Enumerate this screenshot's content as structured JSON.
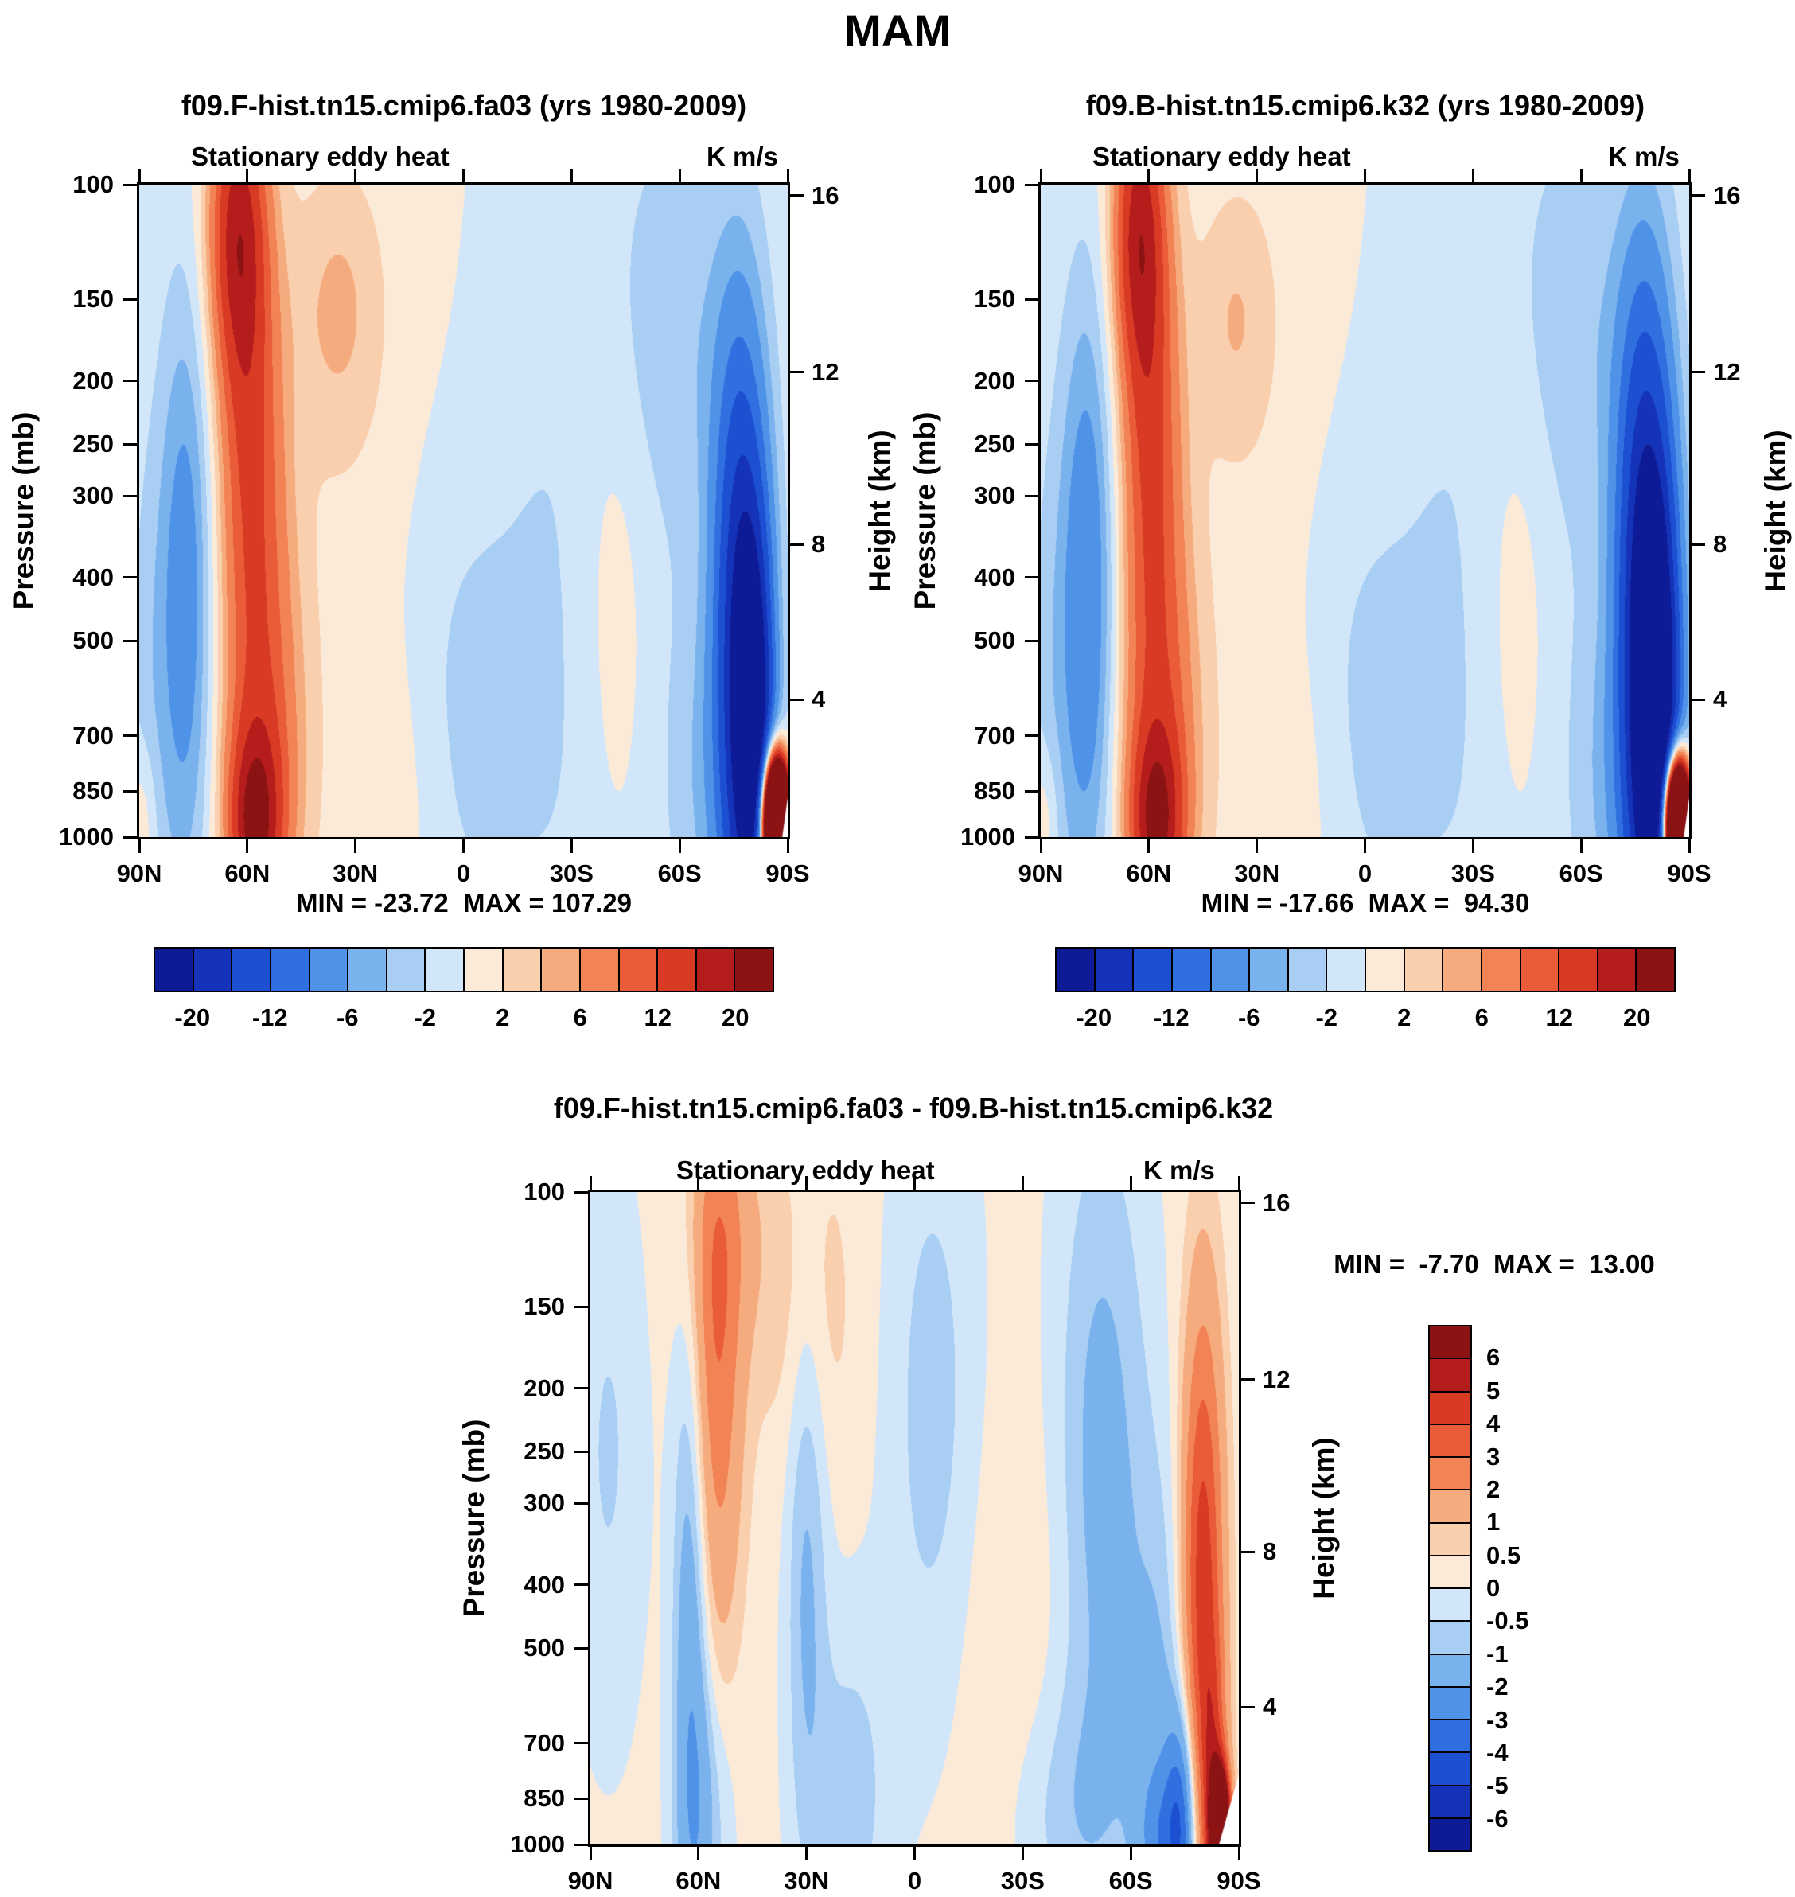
{
  "page_title": "MAM",
  "chart_data": [
    {
      "type": "heatmap",
      "plot": "latitude-pressure filled contour section",
      "title": "f09.F-hist.tn15.cmip6.fa03 (yrs 1980-2009)",
      "subtitle": "Stationary eddy heat",
      "units": "K m/s",
      "ylabel_left": "Pressure (mb)",
      "ylabel_right": "Height (km)",
      "y_scale": "log",
      "pressure_ticks_mb": [
        100,
        150,
        200,
        250,
        300,
        400,
        500,
        700,
        850,
        1000
      ],
      "height_ticks_km": [
        {
          "km": "16",
          "p_mb": 104
        },
        {
          "km": "12",
          "p_mb": 194
        },
        {
          "km": "8",
          "p_mb": 356
        },
        {
          "km": "4",
          "p_mb": 616
        }
      ],
      "x_ticks": [
        "90N",
        "60N",
        "30N",
        "0",
        "30S",
        "60S",
        "90S"
      ],
      "x_range_deg": [
        90,
        -90
      ],
      "min": -23.72,
      "max": 107.29,
      "minmax_label": "MIN = -23.72  MAX = 107.29",
      "contour_levels": [
        -20,
        -16,
        -12,
        -9,
        -6,
        -4,
        -2,
        0,
        2,
        4,
        6,
        9,
        12,
        16,
        20
      ],
      "colorbar_tick_labels": [
        "-20",
        "-12",
        "-6",
        "-2",
        "2",
        "6",
        "12",
        "20"
      ],
      "colors": [
        "#0d1c96",
        "#1433b8",
        "#1d4fd2",
        "#2f6fe0",
        "#4f93e8",
        "#7ab2ee",
        "#a8cef4",
        "#d2e6f9",
        "#fcead9",
        "#f9cfae",
        "#f6ab7e",
        "#f28354",
        "#ea5c38",
        "#d93a24",
        "#b51d1d",
        "#8c1313"
      ],
      "field_base": 0,
      "field_gaussians": [
        {
          "lat": 63,
          "p": 115,
          "amp": 14,
          "slat": 5.5,
          "sp": 0.16
        },
        {
          "lat": 60,
          "p": 210,
          "amp": 8,
          "slat": 6,
          "sp": 0.26
        },
        {
          "lat": 57,
          "p": 430,
          "amp": 6,
          "slat": 7,
          "sp": 0.34
        },
        {
          "lat": 55,
          "p": 800,
          "amp": 6.5,
          "slat": 8,
          "sp": 0.22
        },
        {
          "lat": 58,
          "p": 960,
          "amp": 14,
          "slat": 5,
          "sp": 0.1
        },
        {
          "lat": 35,
          "p": 155,
          "amp": 3.5,
          "slat": 8,
          "sp": 0.14
        },
        {
          "lat": 25,
          "p": 300,
          "amp": 1.6,
          "slat": 22,
          "sp": 0.5
        },
        {
          "lat": 20,
          "p": 900,
          "amp": 1.8,
          "slat": 10,
          "sp": 0.18
        },
        {
          "lat": 5,
          "p": 600,
          "amp": -1.8,
          "slat": 12,
          "sp": 0.3
        },
        {
          "lat": 77,
          "p": 430,
          "amp": -8,
          "slat": 5.5,
          "sp": 0.33
        },
        {
          "lat": 88,
          "p": 700,
          "amp": -2.5,
          "slat": 5,
          "sp": 0.35
        },
        {
          "lat": 89,
          "p": 960,
          "amp": 3.5,
          "slat": 3,
          "sp": 0.09
        },
        {
          "lat": -35,
          "p": 250,
          "amp": -1.8,
          "slat": 25,
          "sp": 0.42
        },
        {
          "lat": -20,
          "p": 750,
          "amp": -1.6,
          "slat": 30,
          "sp": 0.3
        },
        {
          "lat": -42,
          "p": 450,
          "amp": 3,
          "slat": 8,
          "sp": 0.3
        },
        {
          "lat": -58,
          "p": 160,
          "amp": -2.5,
          "slat": 10,
          "sp": 0.22
        },
        {
          "lat": -66,
          "p": 850,
          "amp": -2.5,
          "slat": 7,
          "sp": 0.2
        },
        {
          "lat": -78,
          "p": 600,
          "amp": -20,
          "slat": 5.5,
          "sp": 0.33
        },
        {
          "lat": -81,
          "p": 700,
          "amp": -12,
          "slat": 3.5,
          "sp": 0.2
        },
        {
          "lat": -75,
          "p": 260,
          "amp": -4,
          "slat": 6,
          "sp": 0.28
        },
        {
          "lat": -87,
          "p": 960,
          "amp": 115,
          "slat": 2.2,
          "sp": 0.06
        },
        {
          "lat": -84,
          "p": 955,
          "amp": 7,
          "slat": 2.5,
          "sp": 0.09
        }
      ],
      "white_mask_triangle": [
        [
          -90,
          870
        ],
        [
          -90,
          1000
        ],
        [
          -88.5,
          1000
        ]
      ]
    },
    {
      "type": "heatmap",
      "plot": "latitude-pressure filled contour section",
      "title": "f09.B-hist.tn15.cmip6.k32 (yrs 1980-2009)",
      "subtitle": "Stationary eddy heat",
      "units": "K m/s",
      "ylabel_left": "Pressure (mb)",
      "ylabel_right": "Height (km)",
      "y_scale": "log",
      "pressure_ticks_mb": [
        100,
        150,
        200,
        250,
        300,
        400,
        500,
        700,
        850,
        1000
      ],
      "height_ticks_km": [
        {
          "km": "16",
          "p_mb": 104
        },
        {
          "km": "12",
          "p_mb": 194
        },
        {
          "km": "8",
          "p_mb": 356
        },
        {
          "km": "4",
          "p_mb": 616
        }
      ],
      "x_ticks": [
        "90N",
        "60N",
        "30N",
        "0",
        "30S",
        "60S",
        "90S"
      ],
      "x_range_deg": [
        90,
        -90
      ],
      "min": -17.66,
      "max": 94.3,
      "minmax_label": "MIN = -17.66  MAX =  94.30",
      "contour_levels": [
        -20,
        -16,
        -12,
        -9,
        -6,
        -4,
        -2,
        0,
        2,
        4,
        6,
        9,
        12,
        16,
        20
      ],
      "colorbar_tick_labels": [
        "-20",
        "-12",
        "-6",
        "-2",
        "2",
        "6",
        "12",
        "20"
      ],
      "colors": [
        "#0d1c96",
        "#1433b8",
        "#1d4fd2",
        "#2f6fe0",
        "#4f93e8",
        "#7ab2ee",
        "#a8cef4",
        "#d2e6f9",
        "#fcead9",
        "#f9cfae",
        "#f6ab7e",
        "#f28354",
        "#ea5c38",
        "#d93a24",
        "#b51d1d",
        "#8c1313"
      ],
      "field_base": 0,
      "field_gaussians": [
        {
          "lat": 63,
          "p": 115,
          "amp": 14,
          "slat": 5,
          "sp": 0.16
        },
        {
          "lat": 60,
          "p": 210,
          "amp": 8,
          "slat": 5.5,
          "sp": 0.26
        },
        {
          "lat": 58,
          "p": 430,
          "amp": 6,
          "slat": 6.5,
          "sp": 0.34
        },
        {
          "lat": 56,
          "p": 800,
          "amp": 6.5,
          "slat": 8,
          "sp": 0.22
        },
        {
          "lat": 58,
          "p": 960,
          "amp": 13,
          "slat": 5,
          "sp": 0.1
        },
        {
          "lat": 36,
          "p": 160,
          "amp": 3,
          "slat": 7,
          "sp": 0.13
        },
        {
          "lat": 25,
          "p": 300,
          "amp": 1.6,
          "slat": 22,
          "sp": 0.5
        },
        {
          "lat": 20,
          "p": 900,
          "amp": 1.8,
          "slat": 10,
          "sp": 0.18
        },
        {
          "lat": 5,
          "p": 600,
          "amp": -1.8,
          "slat": 12,
          "sp": 0.3
        },
        {
          "lat": 77,
          "p": 430,
          "amp": -9,
          "slat": 5.5,
          "sp": 0.33
        },
        {
          "lat": 88,
          "p": 700,
          "amp": -2.5,
          "slat": 5,
          "sp": 0.35
        },
        {
          "lat": 89,
          "p": 960,
          "amp": 3.5,
          "slat": 3,
          "sp": 0.09
        },
        {
          "lat": -35,
          "p": 250,
          "amp": -1.8,
          "slat": 25,
          "sp": 0.42
        },
        {
          "lat": -20,
          "p": 750,
          "amp": -1.6,
          "slat": 30,
          "sp": 0.3
        },
        {
          "lat": -42,
          "p": 450,
          "amp": 3,
          "slat": 8,
          "sp": 0.3
        },
        {
          "lat": -58,
          "p": 160,
          "amp": -2.5,
          "slat": 10,
          "sp": 0.22
        },
        {
          "lat": -66,
          "p": 850,
          "amp": -2.5,
          "slat": 7,
          "sp": 0.2
        },
        {
          "lat": -79,
          "p": 580,
          "amp": -22,
          "slat": 6,
          "sp": 0.36
        },
        {
          "lat": -81,
          "p": 680,
          "amp": -14,
          "slat": 4,
          "sp": 0.22
        },
        {
          "lat": -76,
          "p": 250,
          "amp": -5,
          "slat": 6,
          "sp": 0.28
        },
        {
          "lat": -87,
          "p": 960,
          "amp": 100,
          "slat": 2.2,
          "sp": 0.06
        },
        {
          "lat": -84,
          "p": 955,
          "amp": 7,
          "slat": 2.5,
          "sp": 0.09
        }
      ],
      "white_mask_triangle": [
        [
          -90,
          870
        ],
        [
          -90,
          1000
        ],
        [
          -88.5,
          1000
        ]
      ]
    },
    {
      "type": "heatmap",
      "plot": "latitude-pressure filled contour difference section",
      "title": "f09.F-hist.tn15.cmip6.fa03 - f09.B-hist.tn15.cmip6.k32",
      "subtitle": "Stationary eddy heat",
      "units": "K m/s",
      "ylabel_left": "Pressure (mb)",
      "ylabel_right": "Height (km)",
      "y_scale": "log",
      "pressure_ticks_mb": [
        100,
        150,
        200,
        250,
        300,
        400,
        500,
        700,
        850,
        1000
      ],
      "height_ticks_km": [
        {
          "km": "16",
          "p_mb": 104
        },
        {
          "km": "12",
          "p_mb": 194
        },
        {
          "km": "8",
          "p_mb": 356
        },
        {
          "km": "4",
          "p_mb": 616
        }
      ],
      "x_ticks": [
        "90N",
        "60N",
        "30N",
        "0",
        "30S",
        "60S",
        "90S"
      ],
      "x_range_deg": [
        90,
        -90
      ],
      "min": -7.7,
      "max": 13.0,
      "minmax_label": "MIN =  -7.70  MAX =  13.00",
      "contour_levels": [
        -6,
        -5,
        -4,
        -3,
        -2,
        -1,
        -0.5,
        0,
        0.5,
        1,
        2,
        3,
        4,
        5,
        6
      ],
      "colorbar_tick_labels": [
        "6",
        "5",
        "4",
        "3",
        "2",
        "1",
        "0.5",
        "0",
        "-0.5",
        "-1",
        "-2",
        "-3",
        "-4",
        "-5",
        "-6"
      ],
      "colors": [
        "#0d1c96",
        "#1433b8",
        "#1d4fd2",
        "#2f6fe0",
        "#4f93e8",
        "#7ab2ee",
        "#a8cef4",
        "#d2e6f9",
        "#fcead9",
        "#f9cfae",
        "#f6ab7e",
        "#f28354",
        "#ea5c38",
        "#d93a24",
        "#b51d1d",
        "#8c1313"
      ],
      "field_base": 0.15,
      "field_gaussians": [
        {
          "lat": 55,
          "p": 185,
          "amp": 2.6,
          "slat": 5,
          "sp": 0.3
        },
        {
          "lat": 52,
          "p": 115,
          "amp": 1.0,
          "slat": 8,
          "sp": 0.14
        },
        {
          "lat": 30,
          "p": 150,
          "amp": 0.8,
          "slat": 9,
          "sp": 0.2
        },
        {
          "lat": 62,
          "p": 500,
          "amp": -2.0,
          "slat": 3.5,
          "sp": 0.4
        },
        {
          "lat": 58,
          "p": 900,
          "amp": -1.0,
          "slat": 5,
          "sp": 0.15
        },
        {
          "lat": 30,
          "p": 330,
          "amp": -1.3,
          "slat": 4,
          "sp": 0.35
        },
        {
          "lat": 18,
          "p": 850,
          "amp": -0.9,
          "slat": 8,
          "sp": 0.2
        },
        {
          "lat": -5,
          "p": 220,
          "amp": -0.9,
          "slat": 9,
          "sp": 0.35
        },
        {
          "lat": 85,
          "p": 250,
          "amp": -0.7,
          "slat": 7,
          "sp": 0.3
        },
        {
          "lat": -30,
          "p": 600,
          "amp": 0.4,
          "slat": 15,
          "sp": 0.3
        },
        {
          "lat": -52,
          "p": 280,
          "amp": -1.5,
          "slat": 9,
          "sp": 0.4
        },
        {
          "lat": -42,
          "p": 900,
          "amp": -0.9,
          "slat": 12,
          "sp": 0.15
        },
        {
          "lat": -68,
          "p": 750,
          "amp": -1.2,
          "slat": 6,
          "sp": 0.3
        },
        {
          "lat": -80,
          "p": 400,
          "amp": 4.5,
          "slat": 4,
          "sp": 0.3
        },
        {
          "lat": -83,
          "p": 850,
          "amp": 3,
          "slat": 2.5,
          "sp": 0.15
        },
        {
          "lat": -85,
          "p": 950,
          "amp": 12,
          "slat": 1.8,
          "sp": 0.06
        },
        {
          "lat": -74,
          "p": 930,
          "amp": -3.5,
          "slat": 3,
          "sp": 0.12
        },
        {
          "lat": -68,
          "p": 980,
          "amp": -1.5,
          "slat": 4,
          "sp": 0.08
        }
      ],
      "white_mask_triangle": [
        [
          -90,
          780
        ],
        [
          -90,
          1000
        ],
        [
          -84.5,
          1000
        ]
      ]
    }
  ]
}
